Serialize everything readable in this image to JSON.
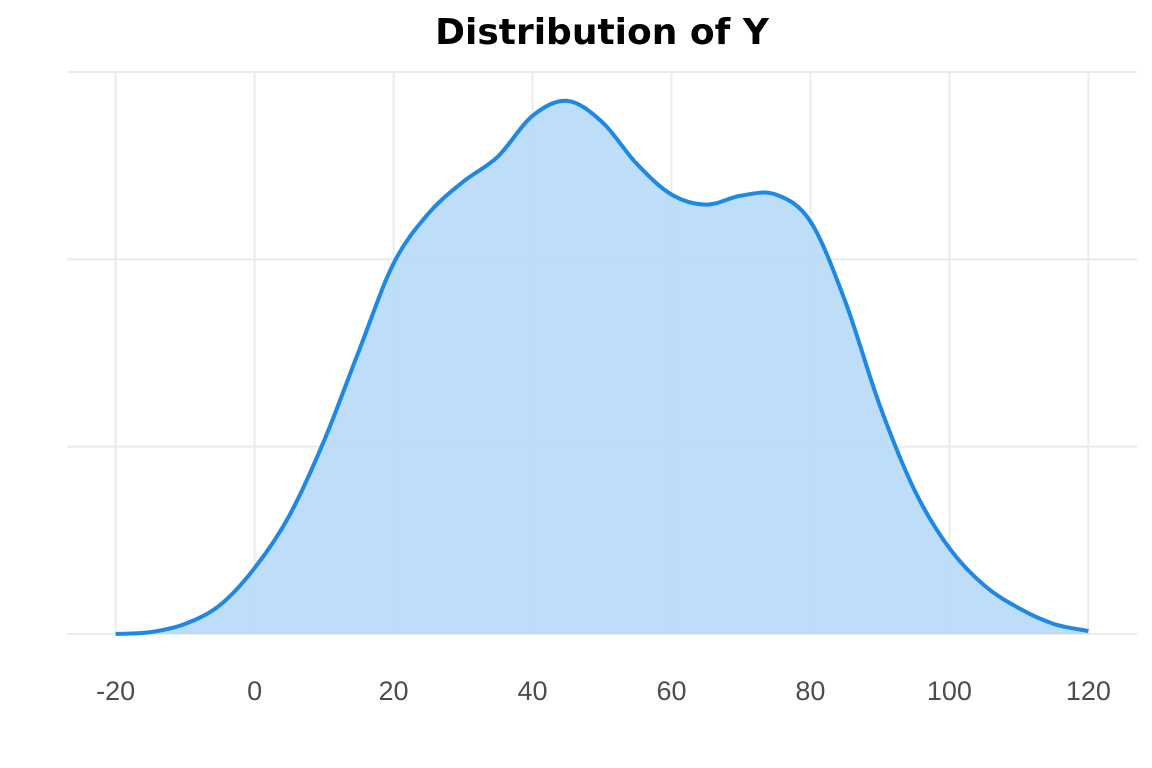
{
  "chart_data": {
    "type": "area",
    "title": "Distribution of Y",
    "x": [
      -20,
      -15,
      -10,
      -5,
      0,
      5,
      10,
      15,
      20,
      25,
      30,
      35,
      40,
      45,
      50,
      55,
      60,
      65,
      70,
      75,
      80,
      85,
      90,
      95,
      100,
      105,
      110,
      115,
      120
    ],
    "values": [
      0,
      5e-05,
      0.00027,
      0.00077,
      0.00176,
      0.00316,
      0.00516,
      0.00755,
      0.00989,
      0.01122,
      0.01207,
      0.01274,
      0.01383,
      0.01423,
      0.01367,
      0.01255,
      0.01173,
      0.01146,
      0.0117,
      0.01173,
      0.01101,
      0.00888,
      0.00609,
      0.00383,
      0.00229,
      0.0013,
      0.00069,
      0.00027,
      8e-05
    ],
    "color": "#1e88e5",
    "fill": "#b9dbf8",
    "xlim": [
      -27,
      127
    ],
    "xticks": [
      -20,
      0,
      20,
      40,
      60,
      80,
      100,
      120
    ],
    "ylim": [
      0,
      0.015
    ],
    "yticks": [
      0,
      0.005,
      0.01,
      0.015
    ],
    "grid": true
  }
}
